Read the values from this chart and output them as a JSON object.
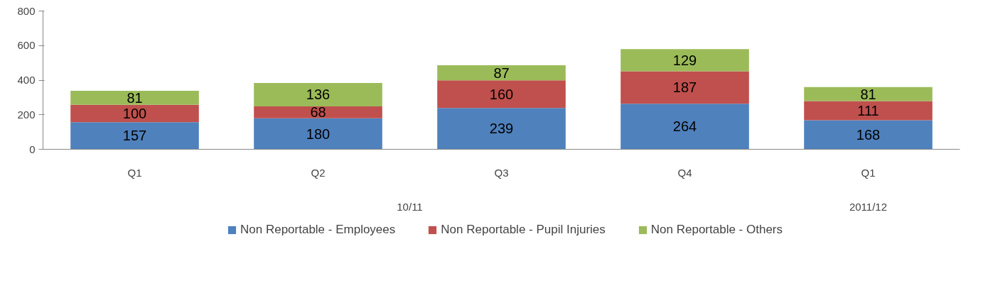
{
  "chart_data": {
    "type": "bar",
    "stacked": true,
    "categories": [
      "Q1",
      "Q2",
      "Q3",
      "Q4",
      "Q1"
    ],
    "annotations": [
      "10/11",
      "2011/12"
    ],
    "series": [
      {
        "name": "Non Reportable - Employees",
        "color": "#4f81bd",
        "values": [
          157,
          180,
          239,
          264,
          168
        ]
      },
      {
        "name": "Non Reportable - Pupil Injuries",
        "color": "#c0504d",
        "values": [
          100,
          68,
          160,
          187,
          111
        ]
      },
      {
        "name": "Non Reportable - Others",
        "color": "#9bbb59",
        "values": [
          81,
          136,
          87,
          129,
          81
        ]
      }
    ],
    "ylim": [
      0,
      800
    ],
    "yticks": [
      0,
      200,
      400,
      600,
      800
    ],
    "data_labels": true,
    "grid": false,
    "legend": "bottom"
  }
}
